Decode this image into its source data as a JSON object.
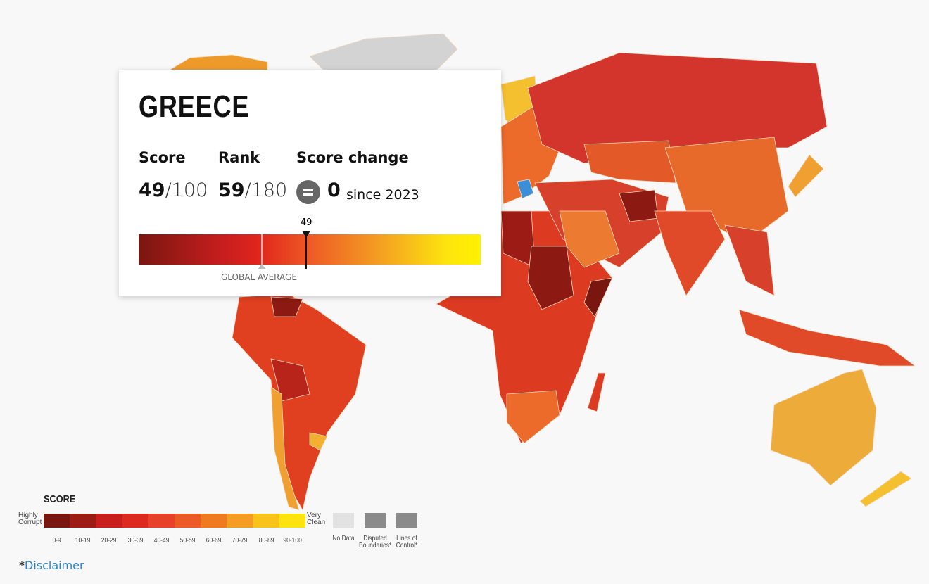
{
  "tooltip": {
    "country": "GREECE",
    "score_label": "Score",
    "score": 49,
    "score_max": "/100",
    "rank_label": "Rank",
    "rank": 59,
    "rank_max": "/180",
    "change_label": "Score change",
    "change": 0,
    "since": "since 2023",
    "marker": {
      "value": 49,
      "label": "49"
    },
    "scale_range": [
      0,
      100
    ],
    "global_average_label": "GLOBAL AVERAGE"
  },
  "legend": {
    "title": "SCORE",
    "low_label": "Highly Corrupt",
    "high_label": "Very Clean",
    "bins": [
      "0-9",
      "10-19",
      "20-29",
      "30-39",
      "40-49",
      "50-59",
      "60-69",
      "70-79",
      "80-89",
      "90-100"
    ],
    "colors": [
      "#7a1610",
      "#9c1b14",
      "#c81e1e",
      "#dc2b1e",
      "#e6422a",
      "#ec5a25",
      "#f07a22",
      "#f49d22",
      "#f8c41b",
      "#fde40f"
    ],
    "other": [
      "No Data",
      "Disputed Boundaries*",
      "Lines of Control*"
    ]
  },
  "footer": {
    "asterisk": "*",
    "link": "Disclaimer"
  }
}
